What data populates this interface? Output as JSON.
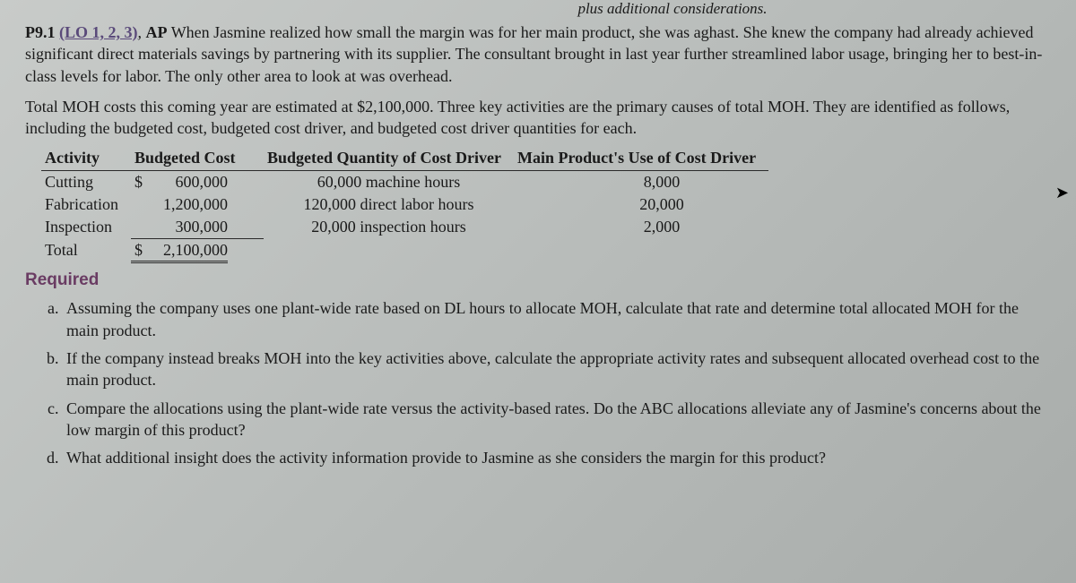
{
  "cutoff_text": "plus additional considerations.",
  "header": {
    "problem_num": "P9.1",
    "lo_ref": "(LO 1, 2, 3)",
    "ap": "AP",
    "intro": "When Jasmine realized how small the margin was for her main product, she was aghast. She knew the company had already achieved significant direct materials savings by partnering with its supplier. The consultant brought in last year further streamlined labor usage, bringing her to best-in-class levels for labor. The only other area to look at was overhead."
  },
  "para2": "Total MOH costs this coming year are estimated at $2,100,000. Three key activities are the primary causes of total MOH. They are identified as follows, including the budgeted cost, budgeted cost driver, and budgeted cost driver quantities for each.",
  "table": {
    "headers": {
      "activity": "Activity",
      "cost": "Budgeted Cost",
      "qty": "Budgeted Quantity of Cost Driver",
      "use": "Main Product's Use of Cost Driver"
    },
    "rows": [
      {
        "activity": "Cutting",
        "cost_prefix": "$",
        "cost": "600,000",
        "qty": "60,000 machine hours",
        "use": "8,000"
      },
      {
        "activity": "Fabrication",
        "cost_prefix": "",
        "cost": "1,200,000",
        "qty": "120,000 direct labor hours",
        "use": "20,000"
      },
      {
        "activity": "Inspection",
        "cost_prefix": "",
        "cost": "300,000",
        "qty": "20,000 inspection hours",
        "use": "2,000"
      }
    ],
    "total": {
      "label": "Total",
      "cost_prefix": "$",
      "cost": "2,100,000"
    }
  },
  "required_title": "Required",
  "requirements": {
    "a": "Assuming the company uses one plant-wide rate based on DL hours to allocate MOH, calculate that rate and determine total allocated MOH for the main product.",
    "b": "If the company instead breaks MOH into the key activities above, calculate the appropriate activity rates and subsequent allocated overhead cost to the main product.",
    "c": "Compare the allocations using the plant-wide rate versus the activity-based rates. Do the ABC allocations alleviate any of Jasmine's concerns about the low margin of this product?",
    "d": "What additional insight does the activity information provide to Jasmine as she considers the margin for this product?"
  }
}
